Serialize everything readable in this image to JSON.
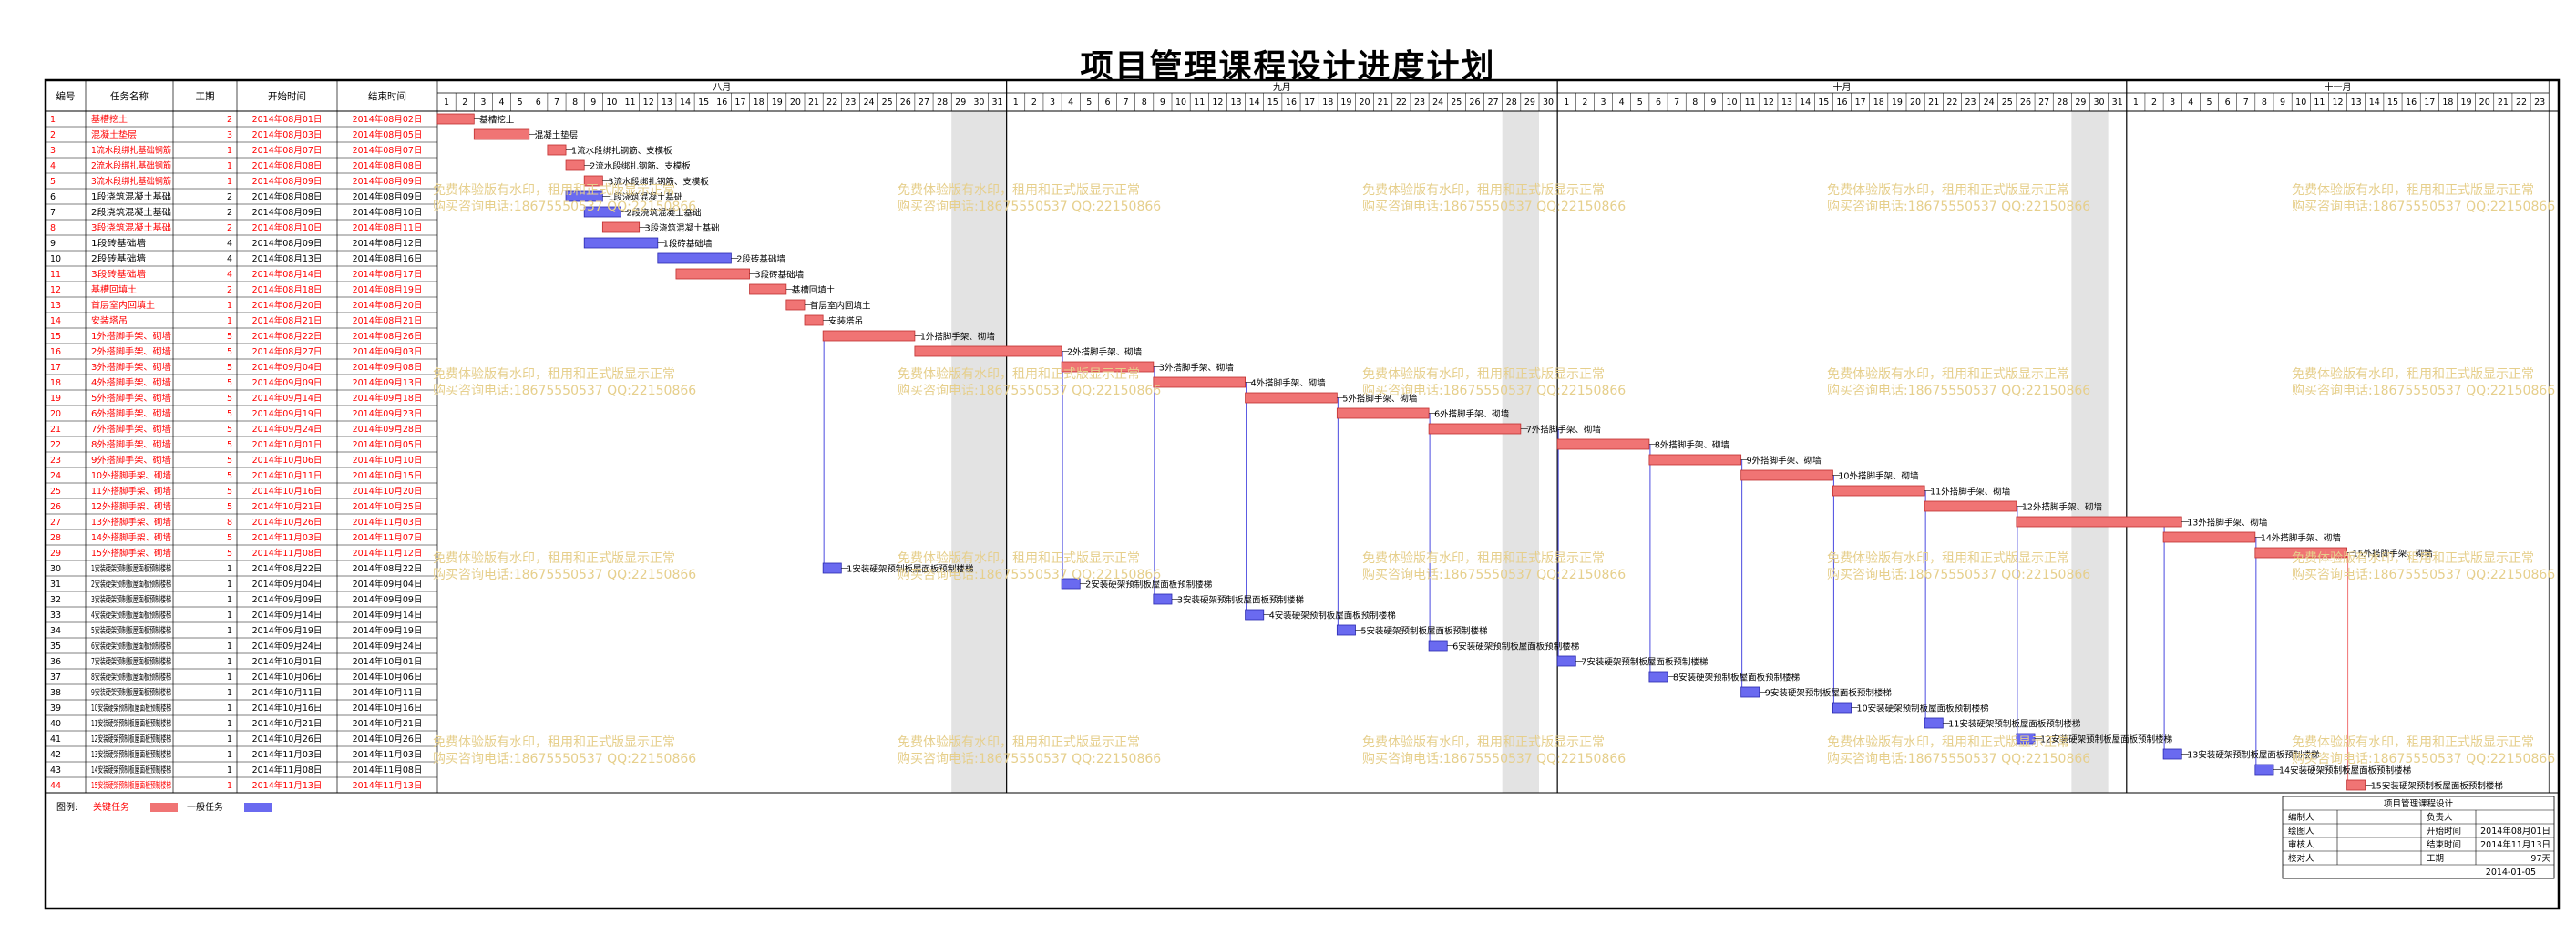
{
  "title": "项目管理课程设计进度计划",
  "columns": [
    "编号",
    "任务名称",
    "工期",
    "开始时间",
    "结束时间"
  ],
  "months": [
    "八月",
    "九月",
    "十月",
    "十一月"
  ],
  "month_days": [
    31,
    30,
    31,
    23
  ],
  "watermark": {
    "line1": "免费体验版有水印，租用和正式版显示正常",
    "line2": "购买咨询电话:18675550537 QQ:22150866"
  },
  "legend": {
    "label": "图例:",
    "critical": "关键任务",
    "normal": "一般任务"
  },
  "colors": {
    "critical": "#f07474",
    "normal": "#6a6af0",
    "critical_text": "#ff0000",
    "link": "#4a4ae0",
    "weekend": "#e3e3e3"
  },
  "info_box": {
    "title": "项目管理课程设计",
    "rows": [
      [
        "编制人",
        "",
        "负责人",
        ""
      ],
      [
        "绘图人",
        "",
        "开始时间",
        "2014年08月01日"
      ],
      [
        "审核人",
        "",
        "结束时间",
        "2014年11月13日"
      ],
      [
        "校对人",
        "",
        "工期",
        "97天"
      ]
    ],
    "date": "2014-01-05"
  },
  "chart_data": {
    "type": "gantt",
    "x_range": [
      "2014-08-01",
      "2014-11-23"
    ],
    "tasks": [
      {
        "id": 1,
        "name": "基槽挖土",
        "duration": 2,
        "start": "2014年08月01日",
        "end": "2014年08月02日",
        "critical": true,
        "label": "基槽挖土"
      },
      {
        "id": 2,
        "name": "混凝土垫层",
        "duration": 3,
        "start": "2014年08月03日",
        "end": "2014年08月05日",
        "critical": true,
        "label": "混凝土垫层"
      },
      {
        "id": 3,
        "name": "1流水段绑扎基础钢筋",
        "duration": 1,
        "start": "2014年08月07日",
        "end": "2014年08月07日",
        "critical": true,
        "label": "1流水段绑扎钢筋、支模板"
      },
      {
        "id": 4,
        "name": "2流水段绑扎基础钢筋",
        "duration": 1,
        "start": "2014年08月08日",
        "end": "2014年08月08日",
        "critical": true,
        "label": "2流水段绑扎钢筋、支模板"
      },
      {
        "id": 5,
        "name": "3流水段绑扎基础钢筋",
        "duration": 1,
        "start": "2014年08月09日",
        "end": "2014年08月09日",
        "critical": true,
        "label": "3流水段绑扎钢筋、支模板"
      },
      {
        "id": 6,
        "name": "1段浇筑混凝土基础",
        "duration": 2,
        "start": "2014年08月08日",
        "end": "2014年08月09日",
        "critical": false,
        "label": "1段浇筑混凝土基础"
      },
      {
        "id": 7,
        "name": "2段浇筑混凝土基础",
        "duration": 2,
        "start": "2014年08月09日",
        "end": "2014年08月10日",
        "critical": false,
        "label": "2段浇筑混凝土基础"
      },
      {
        "id": 8,
        "name": "3段浇筑混凝土基础",
        "duration": 2,
        "start": "2014年08月10日",
        "end": "2014年08月11日",
        "critical": true,
        "label": "3段浇筑混凝土基础"
      },
      {
        "id": 9,
        "name": "1段砖基础墙",
        "duration": 4,
        "start": "2014年08月09日",
        "end": "2014年08月12日",
        "critical": false,
        "label": "1段砖基础墙"
      },
      {
        "id": 10,
        "name": "2段砖基础墙",
        "duration": 4,
        "start": "2014年08月13日",
        "end": "2014年08月16日",
        "critical": false,
        "label": "2段砖基础墙"
      },
      {
        "id": 11,
        "name": "3段砖基础墙",
        "duration": 4,
        "start": "2014年08月14日",
        "end": "2014年08月17日",
        "critical": true,
        "label": "3段砖基础墙"
      },
      {
        "id": 12,
        "name": "基槽回填土",
        "duration": 2,
        "start": "2014年08月18日",
        "end": "2014年08月19日",
        "critical": true,
        "label": "基槽回填土"
      },
      {
        "id": 13,
        "name": "首层室内回填土",
        "duration": 1,
        "start": "2014年08月20日",
        "end": "2014年08月20日",
        "critical": true,
        "label": "首层室内回填土"
      },
      {
        "id": 14,
        "name": "安装塔吊",
        "duration": 1,
        "start": "2014年08月21日",
        "end": "2014年08月21日",
        "critical": true,
        "label": "安装塔吊"
      },
      {
        "id": 15,
        "name": "1外搭脚手架、砌墙",
        "duration": 5,
        "start": "2014年08月22日",
        "end": "2014年08月26日",
        "critical": true,
        "label": "1外搭脚手架、砌墙"
      },
      {
        "id": 16,
        "name": "2外搭脚手架、砌墙",
        "duration": 5,
        "start": "2014年08月27日",
        "end": "2014年09月03日",
        "critical": true,
        "label": "2外搭脚手架、砌墙"
      },
      {
        "id": 17,
        "name": "3外搭脚手架、砌墙",
        "duration": 5,
        "start": "2014年09月04日",
        "end": "2014年09月08日",
        "critical": true,
        "label": "3外搭脚手架、砌墙"
      },
      {
        "id": 18,
        "name": "4外搭脚手架、砌墙",
        "duration": 5,
        "start": "2014年09月09日",
        "end": "2014年09月13日",
        "critical": true,
        "label": "4外搭脚手架、砌墙"
      },
      {
        "id": 19,
        "name": "5外搭脚手架、砌墙",
        "duration": 5,
        "start": "2014年09月14日",
        "end": "2014年09月18日",
        "critical": true,
        "label": "5外搭脚手架、砌墙"
      },
      {
        "id": 20,
        "name": "6外搭脚手架、砌墙",
        "duration": 5,
        "start": "2014年09月19日",
        "end": "2014年09月23日",
        "critical": true,
        "label": "6外搭脚手架、砌墙"
      },
      {
        "id": 21,
        "name": "7外搭脚手架、砌墙",
        "duration": 5,
        "start": "2014年09月24日",
        "end": "2014年09月28日",
        "critical": true,
        "label": "7外搭脚手架、砌墙"
      },
      {
        "id": 22,
        "name": "8外搭脚手架、砌墙",
        "duration": 5,
        "start": "2014年10月01日",
        "end": "2014年10月05日",
        "critical": true,
        "label": "8外搭脚手架、砌墙"
      },
      {
        "id": 23,
        "name": "9外搭脚手架、砌墙",
        "duration": 5,
        "start": "2014年10月06日",
        "end": "2014年10月10日",
        "critical": true,
        "label": "9外搭脚手架、砌墙"
      },
      {
        "id": 24,
        "name": "10外搭脚手架、砌墙",
        "duration": 5,
        "start": "2014年10月11日",
        "end": "2014年10月15日",
        "critical": true,
        "label": "10外搭脚手架、砌墙"
      },
      {
        "id": 25,
        "name": "11外搭脚手架、砌墙",
        "duration": 5,
        "start": "2014年10月16日",
        "end": "2014年10月20日",
        "critical": true,
        "label": "11外搭脚手架、砌墙"
      },
      {
        "id": 26,
        "name": "12外搭脚手架、砌墙",
        "duration": 5,
        "start": "2014年10月21日",
        "end": "2014年10月25日",
        "critical": true,
        "label": "12外搭脚手架、砌墙"
      },
      {
        "id": 27,
        "name": "13外搭脚手架、砌墙",
        "duration": 8,
        "start": "2014年10月26日",
        "end": "2014年11月03日",
        "critical": true,
        "label": "13外搭脚手架、砌墙"
      },
      {
        "id": 28,
        "name": "14外搭脚手架、砌墙",
        "duration": 5,
        "start": "2014年11月03日",
        "end": "2014年11月07日",
        "critical": true,
        "label": "14外搭脚手架、砌墙"
      },
      {
        "id": 29,
        "name": "15外搭脚手架、砌墙",
        "duration": 5,
        "start": "2014年11月08日",
        "end": "2014年11月12日",
        "critical": true,
        "label": "15外搭脚手架、砌墙"
      },
      {
        "id": 30,
        "name": "1安装硬架预制板屋面板预制楼梯",
        "duration": 1,
        "start": "2014年08月22日",
        "end": "2014年08月22日",
        "critical": false,
        "label": "1安装硬架预制板屋面板预制楼梯"
      },
      {
        "id": 31,
        "name": "2安装硬架预制板屋面板预制楼梯",
        "duration": 1,
        "start": "2014年09月04日",
        "end": "2014年09月04日",
        "critical": false,
        "label": "2安装硬架预制板屋面板预制楼梯"
      },
      {
        "id": 32,
        "name": "3安装硬架预制板屋面板预制楼梯",
        "duration": 1,
        "start": "2014年09月09日",
        "end": "2014年09月09日",
        "critical": false,
        "label": "3安装硬架预制板屋面板预制楼梯"
      },
      {
        "id": 33,
        "name": "4安装硬架预制板屋面板预制楼梯",
        "duration": 1,
        "start": "2014年09月14日",
        "end": "2014年09月14日",
        "critical": false,
        "label": "4安装硬架预制板屋面板预制楼梯"
      },
      {
        "id": 34,
        "name": "5安装硬架预制板屋面板预制楼梯",
        "duration": 1,
        "start": "2014年09月19日",
        "end": "2014年09月19日",
        "critical": false,
        "label": "5安装硬架预制板屋面板预制楼梯"
      },
      {
        "id": 35,
        "name": "6安装硬架预制板屋面板预制楼梯",
        "duration": 1,
        "start": "2014年09月24日",
        "end": "2014年09月24日",
        "critical": false,
        "label": "6安装硬架预制板屋面板预制楼梯"
      },
      {
        "id": 36,
        "name": "7安装硬架预制板屋面板预制楼梯",
        "duration": 1,
        "start": "2014年10月01日",
        "end": "2014年10月01日",
        "critical": false,
        "label": "7安装硬架预制板屋面板预制楼梯"
      },
      {
        "id": 37,
        "name": "8安装硬架预制板屋面板预制楼梯",
        "duration": 1,
        "start": "2014年10月06日",
        "end": "2014年10月06日",
        "critical": false,
        "label": "8安装硬架预制板屋面板预制楼梯"
      },
      {
        "id": 38,
        "name": "9安装硬架预制板屋面板预制楼梯",
        "duration": 1,
        "start": "2014年10月11日",
        "end": "2014年10月11日",
        "critical": false,
        "label": "9安装硬架预制板屋面板预制楼梯"
      },
      {
        "id": 39,
        "name": "10安装硬架预制板屋面板预制楼梯",
        "duration": 1,
        "start": "2014年10月16日",
        "end": "2014年10月16日",
        "critical": false,
        "label": "10安装硬架预制板屋面板预制楼梯"
      },
      {
        "id": 40,
        "name": "11安装硬架预制板屋面板预制楼梯",
        "duration": 1,
        "start": "2014年10月21日",
        "end": "2014年10月21日",
        "critical": false,
        "label": "11安装硬架预制板屋面板预制楼梯"
      },
      {
        "id": 41,
        "name": "12安装硬架预制板屋面板预制楼梯",
        "duration": 1,
        "start": "2014年10月26日",
        "end": "2014年10月26日",
        "critical": false,
        "label": "12安装硬架预制板屋面板预制楼梯"
      },
      {
        "id": 42,
        "name": "13安装硬架预制板屋面板预制楼梯",
        "duration": 1,
        "start": "2014年11月03日",
        "end": "2014年11月03日",
        "critical": false,
        "label": "13安装硬架预制板屋面板预制楼梯"
      },
      {
        "id": 43,
        "name": "14安装硬架预制板屋面板预制楼梯",
        "duration": 1,
        "start": "2014年11月08日",
        "end": "2014年11月08日",
        "critical": false,
        "label": "14安装硬架预制板屋面板预制楼梯"
      },
      {
        "id": 44,
        "name": "15安装硬架预制板屋面板预制楼梯",
        "duration": 1,
        "start": "2014年11月13日",
        "end": "2014年11月13日",
        "critical": true,
        "label": "15安装硬架预制板屋面板预制楼梯"
      }
    ]
  }
}
